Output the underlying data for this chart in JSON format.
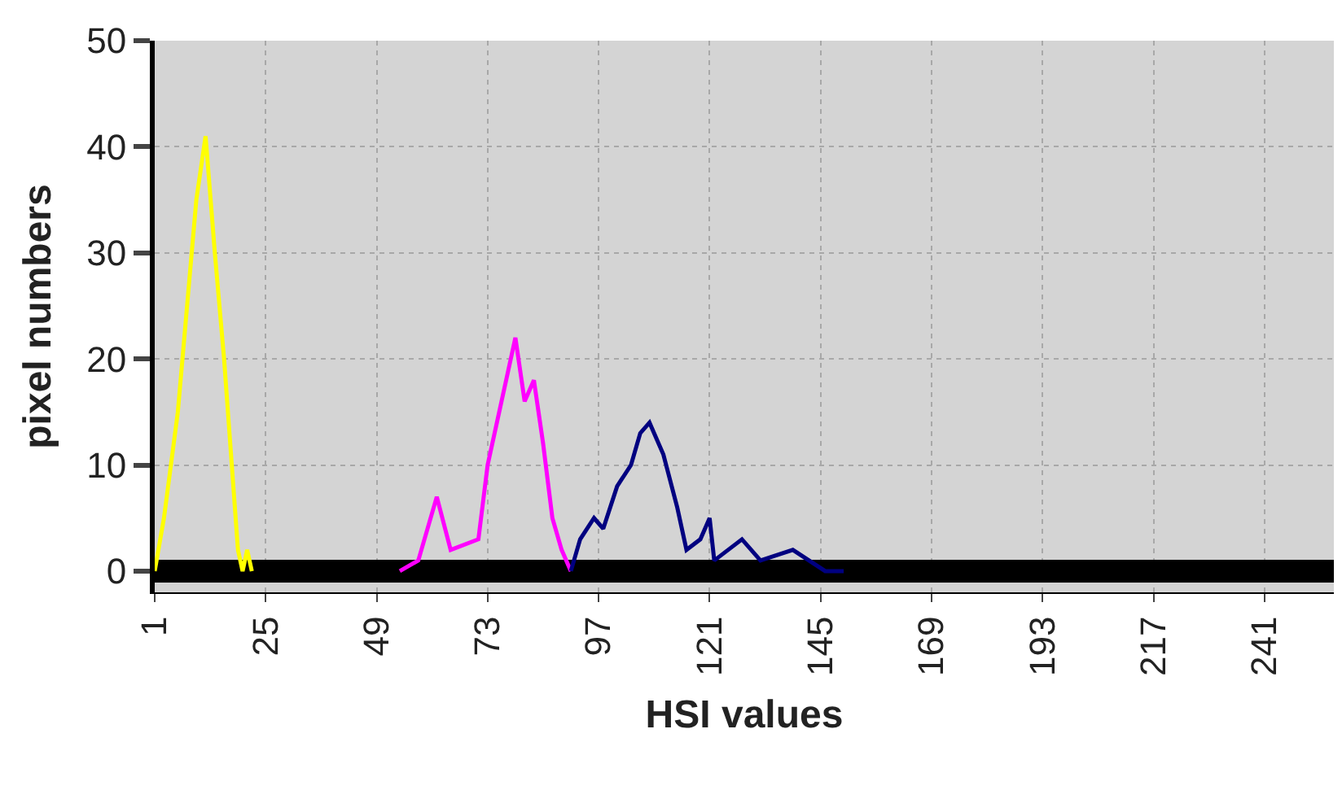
{
  "chart_data": {
    "type": "line",
    "xlabel": "HSI values",
    "ylabel": "pixel numbers",
    "xlim": [
      1,
      256
    ],
    "ylim": [
      -2,
      50
    ],
    "xticks": [
      1,
      25,
      49,
      73,
      97,
      121,
      145,
      169,
      193,
      217,
      241
    ],
    "yticks": [
      0,
      10,
      20,
      30,
      40,
      50
    ],
    "grid": true,
    "series": [
      {
        "color": "#000000",
        "x": [
          1,
          256
        ],
        "values": [
          0,
          0
        ]
      },
      {
        "color": "#ffff00",
        "x": [
          1,
          3,
          6,
          10,
          12,
          14,
          16,
          18,
          19,
          20,
          21,
          22
        ],
        "values": [
          0,
          5,
          15,
          35,
          41,
          30,
          20,
          8,
          2,
          0,
          2,
          0
        ]
      },
      {
        "color": "#ff00ff",
        "x": [
          54,
          58,
          62,
          65,
          71,
          73,
          76,
          77,
          79,
          81,
          83,
          85,
          87,
          89,
          91
        ],
        "values": [
          0,
          1,
          7,
          2,
          3,
          10,
          16,
          18,
          22,
          16,
          18,
          12,
          5,
          2,
          0
        ]
      },
      {
        "color": "#000080",
        "x": [
          91,
          93,
          96,
          98,
          101,
          104,
          106,
          108,
          111,
          114,
          116,
          119,
          121,
          122,
          128,
          132,
          139,
          146,
          150
        ],
        "values": [
          0,
          3,
          5,
          4,
          8,
          10,
          13,
          14,
          11,
          6,
          2,
          3,
          5,
          1,
          3,
          1,
          2,
          0,
          0
        ]
      }
    ]
  }
}
